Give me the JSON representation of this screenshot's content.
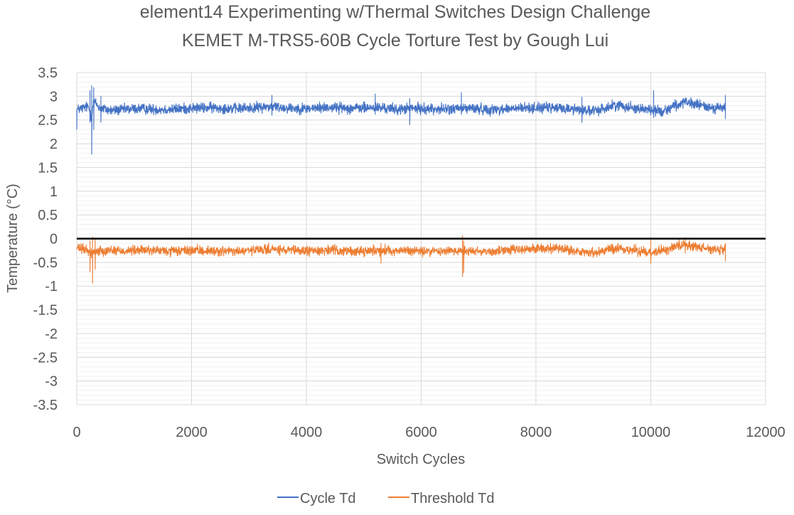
{
  "chart_data": {
    "type": "line",
    "title": "element14 Experimenting w/Thermal Switches Design Challenge",
    "subtitle": "KEMET M-TRS5-60B Cycle Torture Test by Gough Lui",
    "xlabel": "Switch Cycles",
    "ylabel": "Temperature (°C)",
    "xlim": [
      0,
      12000
    ],
    "ylim": [
      -3.5,
      3.5
    ],
    "x_ticks": [
      0,
      2000,
      4000,
      6000,
      8000,
      10000,
      12000
    ],
    "x_tick_labels": [
      "0",
      "2000",
      "4000",
      "6000",
      "8000",
      "10000",
      "12000"
    ],
    "y_ticks": [
      3.5,
      3,
      2.5,
      2,
      1.5,
      1,
      0.5,
      0,
      -0.5,
      -1,
      -1.5,
      -2,
      -2.5,
      -3,
      -3.5
    ],
    "y_tick_labels": [
      "3.5",
      "3",
      "2.5",
      "2",
      "1.5",
      "1",
      "0.5",
      "0",
      "-0.5",
      "-1",
      "-1.5",
      "-2",
      "-2.5",
      "-3",
      "-3.5"
    ],
    "grid": true,
    "zero_line": true,
    "legend_position": "bottom",
    "series": [
      {
        "name": "Cycle Td",
        "color": "#4472C4",
        "x": [
          0,
          100,
          200,
          250,
          300,
          400,
          600,
          800,
          1000,
          1300,
          1600,
          2000,
          2400,
          2800,
          3200,
          3400,
          3600,
          4000,
          4400,
          4800,
          5200,
          5400,
          5600,
          5800,
          6000,
          6400,
          6800,
          7200,
          7600,
          8000,
          8400,
          8800,
          9000,
          9400,
          9800,
          10000,
          10200,
          10400,
          10600,
          10800,
          11000,
          11300
        ],
        "values": [
          2.72,
          2.75,
          2.78,
          2.6,
          2.9,
          2.75,
          2.7,
          2.72,
          2.74,
          2.73,
          2.72,
          2.75,
          2.76,
          2.74,
          2.77,
          2.79,
          2.76,
          2.74,
          2.77,
          2.75,
          2.76,
          2.75,
          2.72,
          2.75,
          2.74,
          2.73,
          2.75,
          2.72,
          2.74,
          2.76,
          2.75,
          2.72,
          2.68,
          2.82,
          2.74,
          2.72,
          2.68,
          2.8,
          2.86,
          2.83,
          2.77,
          2.75
        ],
        "noise": 0.055,
        "spikes": [
          {
            "x": 0,
            "low": 2.3,
            "high": 2.72
          },
          {
            "x": 230,
            "low": 2.45,
            "high": 3.12
          },
          {
            "x": 260,
            "low": 1.78,
            "high": 3.22
          },
          {
            "x": 295,
            "low": 2.3,
            "high": 3.18
          },
          {
            "x": 420,
            "low": 2.45,
            "high": 3.0
          },
          {
            "x": 3400,
            "low": 2.6,
            "high": 3.02
          },
          {
            "x": 5200,
            "low": 2.62,
            "high": 3.05
          },
          {
            "x": 5800,
            "low": 2.4,
            "high": 2.95
          },
          {
            "x": 6700,
            "low": 2.62,
            "high": 3.08
          },
          {
            "x": 8800,
            "low": 2.45,
            "high": 2.98
          },
          {
            "x": 10050,
            "low": 2.55,
            "high": 3.12
          },
          {
            "x": 11300,
            "low": 2.52,
            "high": 3.02
          }
        ]
      },
      {
        "name": "Threshold Td",
        "color": "#ED7D31",
        "x": [
          0,
          100,
          200,
          250,
          300,
          400,
          600,
          800,
          1000,
          1300,
          1600,
          2000,
          2400,
          2800,
          3200,
          3400,
          3600,
          4000,
          4400,
          4800,
          5200,
          5400,
          5600,
          5800,
          6000,
          6400,
          6800,
          7200,
          7600,
          8000,
          8400,
          8800,
          9000,
          9400,
          9800,
          10000,
          10200,
          10400,
          10600,
          10800,
          11000,
          11300
        ],
        "values": [
          -0.2,
          -0.22,
          -0.25,
          -0.3,
          -0.28,
          -0.25,
          -0.24,
          -0.26,
          -0.25,
          -0.24,
          -0.27,
          -0.25,
          -0.26,
          -0.27,
          -0.24,
          -0.22,
          -0.25,
          -0.26,
          -0.24,
          -0.27,
          -0.25,
          -0.24,
          -0.26,
          -0.25,
          -0.27,
          -0.26,
          -0.25,
          -0.27,
          -0.24,
          -0.2,
          -0.22,
          -0.28,
          -0.3,
          -0.2,
          -0.26,
          -0.28,
          -0.25,
          -0.18,
          -0.12,
          -0.16,
          -0.22,
          -0.25
        ],
        "noise": 0.05,
        "spikes": [
          {
            "x": 230,
            "low": -0.7,
            "high": -0.05
          },
          {
            "x": 275,
            "low": -0.94,
            "high": 0.04
          },
          {
            "x": 320,
            "low": -0.65,
            "high": 0.0
          },
          {
            "x": 5300,
            "low": -0.52,
            "high": -0.1
          },
          {
            "x": 6720,
            "low": -0.8,
            "high": 0.06
          },
          {
            "x": 6740,
            "low": -0.72,
            "high": -0.05
          },
          {
            "x": 10000,
            "low": -0.52,
            "high": 0.02
          },
          {
            "x": 10600,
            "low": -0.3,
            "high": 0.02
          },
          {
            "x": 11300,
            "low": -0.48,
            "high": -0.1
          }
        ]
      }
    ]
  }
}
